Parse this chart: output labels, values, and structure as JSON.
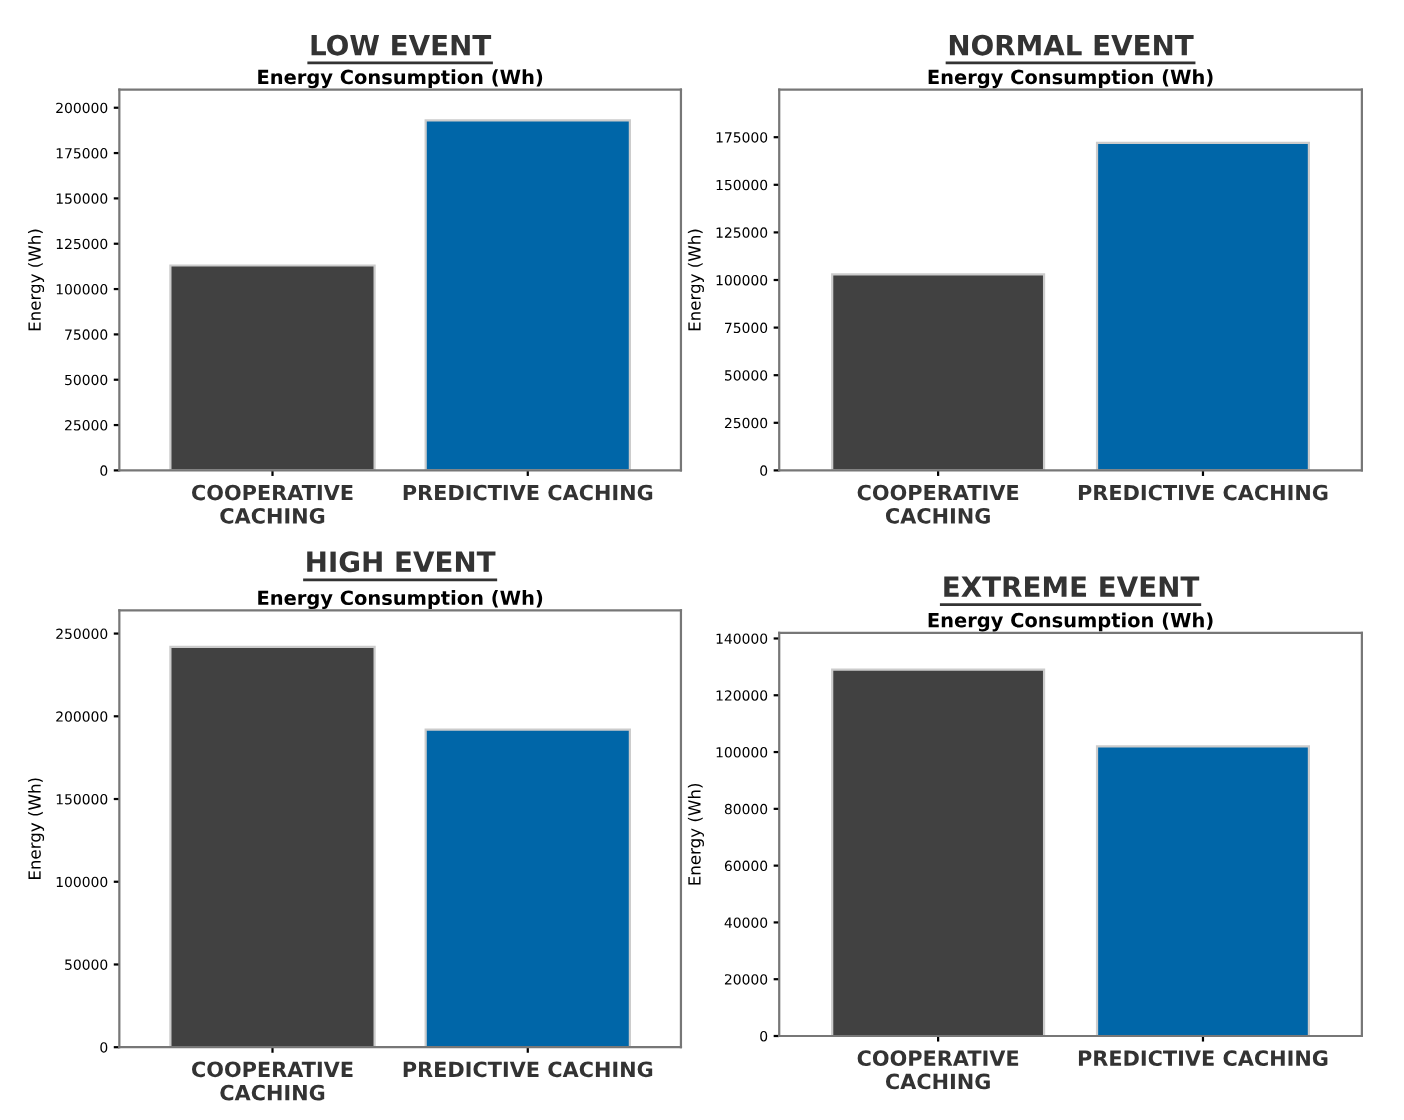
{
  "chart_data": [
    {
      "type": "bar",
      "title": "LOW EVENT",
      "subtitle": "Energy Consumption (Wh)",
      "ylabel": "Energy (Wh)",
      "categories": [
        "COOPERATIVE\nCACHING",
        "PREDICTIVE CACHING"
      ],
      "values": [
        113000,
        193000
      ],
      "colors": [
        "#414141",
        "#0066a8"
      ],
      "ylim": [
        0,
        210000
      ],
      "yticks": [
        0,
        25000,
        50000,
        75000,
        100000,
        125000,
        150000,
        175000,
        200000
      ],
      "grid": false
    },
    {
      "type": "bar",
      "title": "NORMAL EVENT",
      "subtitle": "Energy Consumption (Wh)",
      "ylabel": "Energy (Wh)",
      "categories": [
        "COOPERATIVE\nCACHING",
        "PREDICTIVE CACHING"
      ],
      "values": [
        103000,
        172000
      ],
      "colors": [
        "#414141",
        "#0066a8"
      ],
      "ylim": [
        0,
        200000
      ],
      "yticks": [
        0,
        25000,
        50000,
        75000,
        100000,
        125000,
        150000,
        175000
      ],
      "grid": false
    },
    {
      "type": "bar",
      "title": "HIGH EVENT",
      "subtitle": "Energy Consumption (Wh)",
      "ylabel": "Energy (Wh)",
      "categories": [
        "COOPERATIVE\nCACHING",
        "PREDICTIVE CACHING"
      ],
      "values": [
        242000,
        192000
      ],
      "colors": [
        "#414141",
        "#0066a8"
      ],
      "ylim": [
        0,
        264000
      ],
      "yticks": [
        0,
        50000,
        100000,
        150000,
        200000,
        250000
      ],
      "grid": false
    },
    {
      "type": "bar",
      "title": "EXTREME EVENT",
      "subtitle": "Energy Consumption (Wh)",
      "ylabel": "Energy (Wh)",
      "categories": [
        "COOPERATIVE\nCACHING",
        "PREDICTIVE CACHING"
      ],
      "values": [
        129000,
        102000
      ],
      "colors": [
        "#414141",
        "#0066a8"
      ],
      "ylim": [
        0,
        142000
      ],
      "yticks": [
        0,
        20000,
        40000,
        60000,
        80000,
        100000,
        120000,
        140000
      ],
      "grid": false
    }
  ]
}
